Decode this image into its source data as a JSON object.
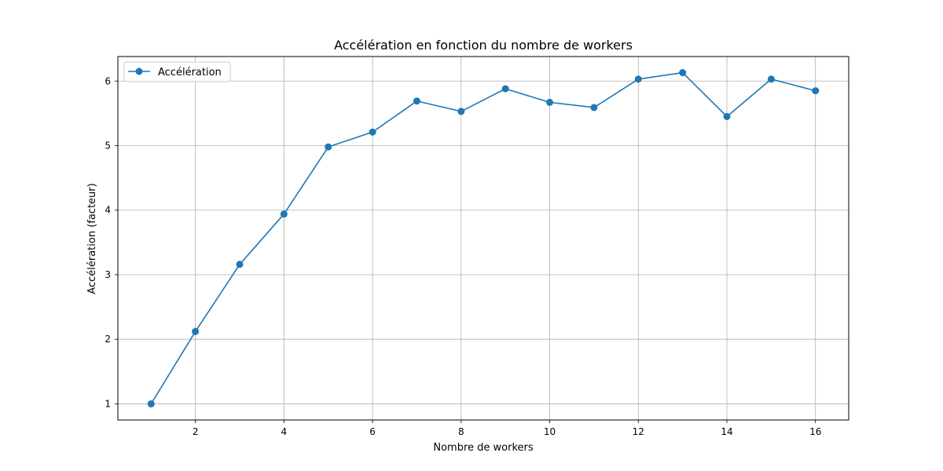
{
  "chart_data": {
    "type": "line",
    "title": "Accélération en fonction du nombre de workers",
    "xlabel": "Nombre de workers",
    "ylabel": "Accélération (facteur)",
    "xlim": [
      0.25,
      16.75
    ],
    "ylim": [
      0.75,
      6.38
    ],
    "xticks": [
      2,
      4,
      6,
      8,
      10,
      12,
      14,
      16
    ],
    "yticks": [
      1,
      2,
      3,
      4,
      5,
      6
    ],
    "grid": true,
    "legend_position": "top-left",
    "series": [
      {
        "name": "Accélération",
        "color": "#1f77b4",
        "marker": "circle",
        "x": [
          1,
          2,
          3,
          4,
          5,
          6,
          7,
          8,
          9,
          10,
          11,
          12,
          13,
          14,
          15,
          16
        ],
        "y": [
          1.0,
          2.12,
          3.16,
          3.94,
          4.98,
          5.21,
          5.69,
          5.53,
          5.88,
          5.67,
          5.59,
          6.03,
          6.13,
          5.45,
          6.03,
          5.85
        ]
      }
    ]
  }
}
